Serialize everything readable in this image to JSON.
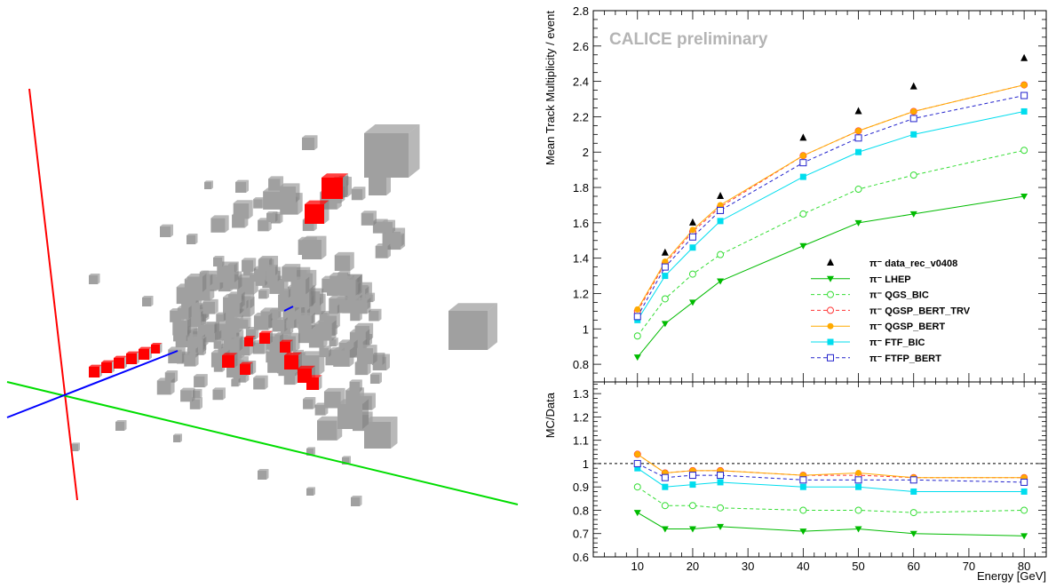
{
  "chart_data": [
    {
      "type": "scatter",
      "panel": "event-display",
      "x": [],
      "y": [],
      "axes_colors": {
        "x": "#ff0000",
        "y": "#00dd00",
        "z": "#0000ff"
      },
      "hit_colors": {
        "shower": "#a0a0a0",
        "track": "#ff0000"
      }
    },
    {
      "type": "line",
      "panel": "track-multiplicity",
      "watermark": "CALICE preliminary",
      "ylabel": "Mean Track Multiplicity / event",
      "ylim": [
        0.7,
        2.8
      ],
      "xlim": [
        2,
        84
      ],
      "grid": false,
      "legend": "bottom-right",
      "x": [
        10,
        15,
        20,
        25,
        40,
        50,
        60,
        80
      ],
      "yticks": [
        "0.8",
        "1",
        "1.2",
        "1.4",
        "1.6",
        "1.8",
        "2",
        "2.2",
        "2.4",
        "2.6",
        "2.8"
      ],
      "series": [
        {
          "name": "π⁻ data_rec_v0408",
          "color": "#000000",
          "marker": "triangle-up",
          "line": "none",
          "values": [
            1.08,
            1.43,
            1.6,
            1.75,
            2.08,
            2.23,
            2.37,
            2.53
          ]
        },
        {
          "name": "π⁻ LHEP",
          "color": "#00bb00",
          "marker": "triangle-down",
          "line": "solid",
          "values": [
            0.84,
            1.03,
            1.15,
            1.27,
            1.47,
            1.6,
            1.65,
            1.75
          ]
        },
        {
          "name": "π⁻ QGS_BIC",
          "color": "#33dd33",
          "marker": "open-circle",
          "line": "dashed",
          "values": [
            0.96,
            1.17,
            1.31,
            1.42,
            1.65,
            1.79,
            1.87,
            2.01
          ]
        },
        {
          "name": "π⁻ QGSP_BERT_TRV",
          "color": "#ff3333",
          "marker": "open-circle",
          "line": "dashed",
          "values": [
            1.1,
            1.37,
            1.55,
            1.69,
            1.98,
            2.12,
            2.23,
            2.38
          ]
        },
        {
          "name": "π⁻ QGSP_BERT",
          "color": "#ffaa00",
          "marker": "filled-circle",
          "line": "solid",
          "values": [
            1.11,
            1.38,
            1.56,
            1.7,
            1.98,
            2.12,
            2.23,
            2.38
          ]
        },
        {
          "name": "π⁻ FTF_BIC",
          "color": "#00ddee",
          "marker": "filled-square",
          "line": "solid",
          "values": [
            1.05,
            1.3,
            1.46,
            1.61,
            1.86,
            2.0,
            2.1,
            2.23
          ]
        },
        {
          "name": "π⁻ FTFP_BERT",
          "color": "#2222cc",
          "marker": "open-square",
          "line": "dashed",
          "values": [
            1.07,
            1.35,
            1.52,
            1.67,
            1.94,
            2.08,
            2.19,
            2.32
          ]
        }
      ]
    },
    {
      "type": "line",
      "panel": "ratio",
      "ylabel": "MC/Data",
      "xlabel": "Energy [GeV]",
      "ylim": [
        0.6,
        1.35
      ],
      "xlim": [
        2,
        84
      ],
      "grid": false,
      "reference_line": 1.0,
      "x": [
        10,
        15,
        20,
        25,
        40,
        50,
        60,
        80
      ],
      "xticks": [
        "10",
        "20",
        "30",
        "40",
        "50",
        "60",
        "70",
        "80"
      ],
      "yticks": [
        "0.6",
        "0.7",
        "0.8",
        "0.9",
        "1",
        "1.1",
        "1.2",
        "1.3"
      ],
      "series": [
        {
          "name": "π⁻ LHEP",
          "color": "#00bb00",
          "marker": "triangle-down",
          "line": "solid",
          "values": [
            0.79,
            0.72,
            0.72,
            0.73,
            0.71,
            0.72,
            0.7,
            0.69
          ]
        },
        {
          "name": "π⁻ QGS_BIC",
          "color": "#33dd33",
          "marker": "open-circle",
          "line": "dashed",
          "values": [
            0.9,
            0.82,
            0.82,
            0.81,
            0.8,
            0.8,
            0.79,
            0.8
          ]
        },
        {
          "name": "π⁻ QGSP_BERT_TRV",
          "color": "#ff3333",
          "marker": "open-circle",
          "line": "dashed",
          "values": [
            1.04,
            0.96,
            0.97,
            0.97,
            0.95,
            0.95,
            0.94,
            0.94
          ]
        },
        {
          "name": "π⁻ QGSP_BERT",
          "color": "#ffaa00",
          "marker": "filled-circle",
          "line": "solid",
          "values": [
            1.04,
            0.96,
            0.97,
            0.97,
            0.95,
            0.96,
            0.94,
            0.94
          ]
        },
        {
          "name": "π⁻ FTF_BIC",
          "color": "#00ddee",
          "marker": "filled-square",
          "line": "solid",
          "values": [
            0.98,
            0.9,
            0.91,
            0.92,
            0.9,
            0.9,
            0.88,
            0.88
          ]
        },
        {
          "name": "π⁻ FTFP_BERT",
          "color": "#2222cc",
          "marker": "open-square",
          "line": "dashed",
          "values": [
            1.0,
            0.94,
            0.95,
            0.95,
            0.93,
            0.93,
            0.93,
            0.92
          ]
        }
      ]
    }
  ]
}
